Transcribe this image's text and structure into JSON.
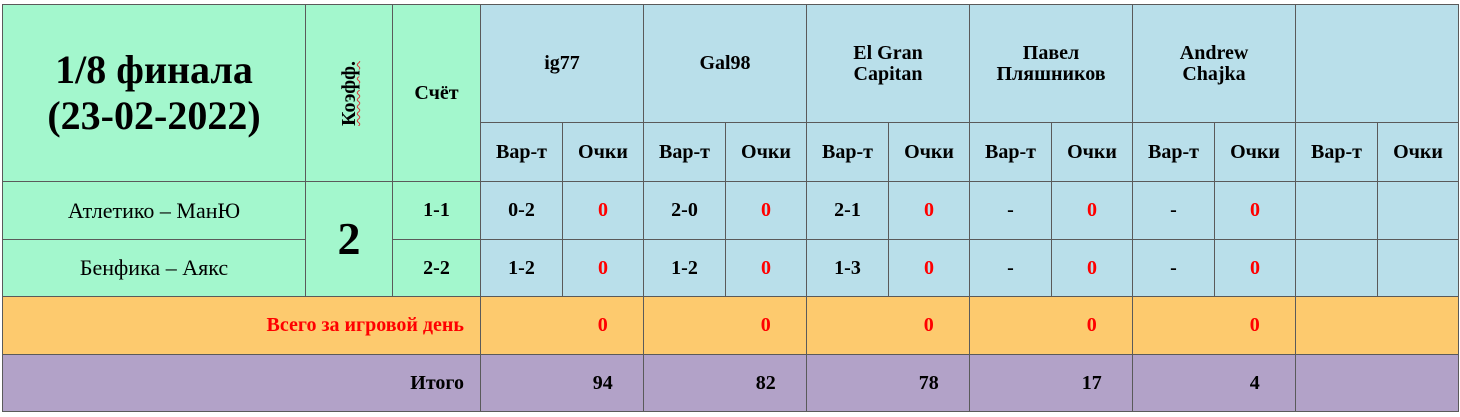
{
  "table": {
    "title": "1/8 финала\n(23-02-2022)",
    "coef_header": "Коэфф.",
    "score_header": "Счёт",
    "players": [
      "ig77",
      "Gal98",
      "El Gran\nCapitan",
      "Павел\nПляшников",
      "Andrew\nChajka"
    ],
    "subheaders": [
      "Вар-т",
      "Очки"
    ],
    "coef": "2",
    "matches": [
      {
        "name": "Атлетико – МанЮ",
        "score": "1-1",
        "predictions": [
          [
            "0-2",
            0
          ],
          [
            "2-0",
            0
          ],
          [
            "2-1",
            0
          ],
          [
            "-",
            0
          ],
          [
            "-",
            0
          ]
        ]
      },
      {
        "name": "Бенфика – Аякс",
        "score": "2-2",
        "predictions": [
          [
            "1-2",
            0
          ],
          [
            "1-2",
            0
          ],
          [
            "1-3",
            0
          ],
          [
            "-",
            0
          ],
          [
            "-",
            0
          ]
        ]
      }
    ],
    "day_label": "Всего за игровой день",
    "day_totals": [
      0,
      0,
      0,
      0,
      0
    ],
    "total_label": "Итого",
    "totals": [
      94,
      82,
      78,
      17,
      4
    ]
  }
}
